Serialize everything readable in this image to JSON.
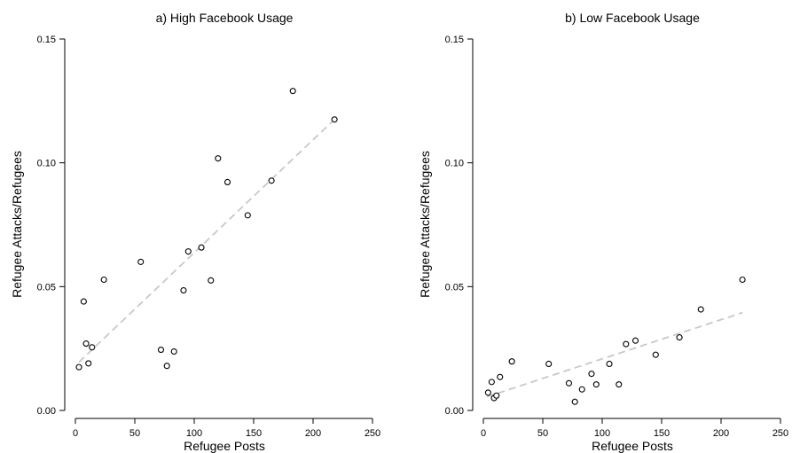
{
  "chart_data": [
    {
      "type": "scatter",
      "title": "a) High Facebook Usage",
      "xlabel": "Refugee Posts",
      "ylabel": "Refugee Attacks/Refugees",
      "xlim": [
        0,
        250
      ],
      "ylim": [
        0,
        0.15
      ],
      "xticks": [
        "0",
        "50",
        "100",
        "150",
        "200",
        "250"
      ],
      "yticks": [
        "0.00",
        "0.05",
        "0.10",
        "0.15"
      ],
      "grid": false,
      "marker": "open-circle",
      "points": [
        {
          "x": 3,
          "y": 0.0175
        },
        {
          "x": 7,
          "y": 0.044
        },
        {
          "x": 9,
          "y": 0.027
        },
        {
          "x": 11,
          "y": 0.019
        },
        {
          "x": 14,
          "y": 0.0255
        },
        {
          "x": 24,
          "y": 0.0528
        },
        {
          "x": 55,
          "y": 0.06
        },
        {
          "x": 72,
          "y": 0.0245
        },
        {
          "x": 77,
          "y": 0.018
        },
        {
          "x": 83,
          "y": 0.0238
        },
        {
          "x": 91,
          "y": 0.0485
        },
        {
          "x": 95,
          "y": 0.0642
        },
        {
          "x": 106,
          "y": 0.0658
        },
        {
          "x": 114,
          "y": 0.0525
        },
        {
          "x": 120,
          "y": 0.1018
        },
        {
          "x": 128,
          "y": 0.0922
        },
        {
          "x": 145,
          "y": 0.0788
        },
        {
          "x": 165,
          "y": 0.0928
        },
        {
          "x": 183,
          "y": 0.129
        },
        {
          "x": 218,
          "y": 0.1175
        }
      ],
      "fit_line": {
        "style": "dashed",
        "color": "#c8c8c8",
        "x": [
          3,
          218
        ],
        "y": [
          0.0195,
          0.1175
        ]
      }
    },
    {
      "type": "scatter",
      "title": "b) Low Facebook Usage",
      "xlabel": "Refugee Posts",
      "ylabel": "Refugee Attacks/Refugees",
      "xlim": [
        0,
        250
      ],
      "ylim": [
        0,
        0.15
      ],
      "xticks": [
        "0",
        "50",
        "100",
        "150",
        "200",
        "250"
      ],
      "yticks": [
        "0.00",
        "0.05",
        "0.10",
        "0.15"
      ],
      "grid": false,
      "marker": "open-circle",
      "points": [
        {
          "x": 4,
          "y": 0.0072
        },
        {
          "x": 7,
          "y": 0.0115
        },
        {
          "x": 9,
          "y": 0.005
        },
        {
          "x": 11,
          "y": 0.006
        },
        {
          "x": 14,
          "y": 0.0135
        },
        {
          "x": 24,
          "y": 0.0198
        },
        {
          "x": 55,
          "y": 0.0188
        },
        {
          "x": 72,
          "y": 0.011
        },
        {
          "x": 77,
          "y": 0.0035
        },
        {
          "x": 83,
          "y": 0.0085
        },
        {
          "x": 91,
          "y": 0.0148
        },
        {
          "x": 95,
          "y": 0.0105
        },
        {
          "x": 106,
          "y": 0.0188
        },
        {
          "x": 114,
          "y": 0.0105
        },
        {
          "x": 120,
          "y": 0.0268
        },
        {
          "x": 128,
          "y": 0.0282
        },
        {
          "x": 145,
          "y": 0.0225
        },
        {
          "x": 165,
          "y": 0.0295
        },
        {
          "x": 183,
          "y": 0.0408
        },
        {
          "x": 218,
          "y": 0.0528
        }
      ],
      "fit_line": {
        "style": "dashed",
        "color": "#c8c8c8",
        "x": [
          3,
          218
        ],
        "y": [
          0.0055,
          0.0395
        ]
      }
    }
  ]
}
